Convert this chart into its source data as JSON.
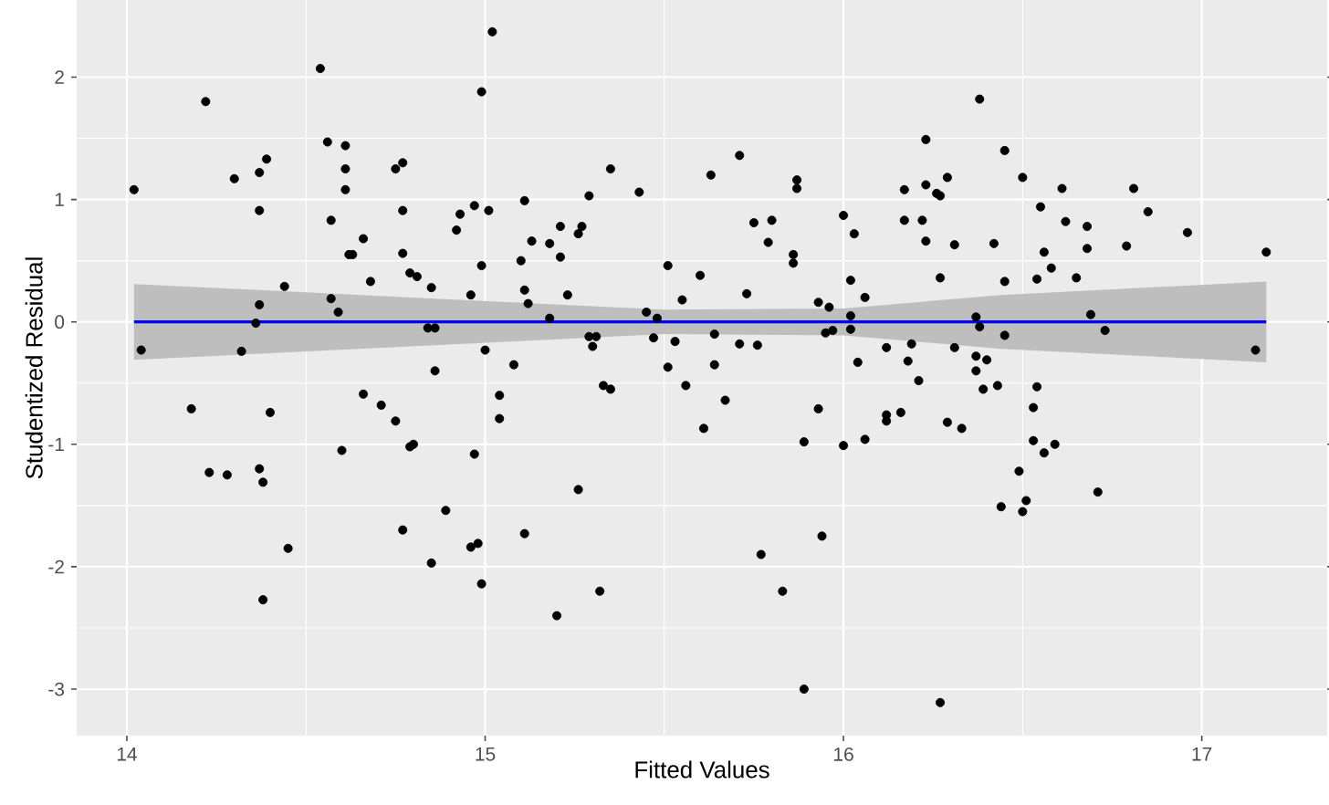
{
  "chart_data": {
    "type": "scatter",
    "xlabel": "Fitted Values",
    "ylabel": "Studentized Residual",
    "xlim": [
      13.86,
      17.35
    ],
    "ylim": [
      -3.38,
      2.63
    ],
    "xticks": [
      14,
      15,
      16,
      17
    ],
    "yticks": [
      -3,
      -2,
      -1,
      0,
      1,
      2
    ],
    "grid": true,
    "series": [
      {
        "type": "scatter",
        "marker": "circle",
        "color": "#000000",
        "x": [
          14.02,
          14.22,
          14.3,
          14.37,
          14.39,
          14.37,
          14.56,
          14.61,
          14.61,
          14.61,
          14.54,
          14.57,
          14.66,
          14.62,
          14.63,
          14.68,
          14.77,
          14.77,
          14.75,
          14.77,
          14.79,
          14.81,
          14.44,
          14.37,
          14.36,
          14.57,
          14.59,
          14.04,
          14.32,
          14.18,
          14.4,
          14.66,
          14.71,
          14.75,
          14.79,
          14.8,
          14.6,
          14.23,
          14.28,
          14.37,
          14.38,
          14.45,
          14.77,
          14.85,
          14.38,
          14.85,
          14.86,
          14.84,
          14.86,
          15.02,
          14.99,
          15.35,
          15.43,
          15.29,
          15.11,
          14.97,
          14.93,
          15.01,
          14.92,
          15.13,
          15.21,
          15.18,
          15.26,
          15.27,
          15.21,
          14.99,
          15.1,
          15.51,
          15.6,
          14.96,
          15.11,
          15.23,
          15.55,
          15.12,
          15.18,
          15.45,
          15.48,
          15.29,
          15.31,
          15.3,
          15.47,
          15.53,
          15.64,
          15.0,
          15.08,
          15.51,
          15.64,
          15.56,
          15.33,
          15.35,
          15.04,
          15.67,
          15.04,
          15.61,
          14.97,
          15.26,
          14.89,
          15.11,
          14.96,
          14.98,
          14.99,
          15.32,
          15.2,
          15.63,
          15.71,
          15.75,
          15.8,
          15.79,
          15.87,
          15.87,
          15.86,
          15.86,
          15.73,
          15.93,
          15.96,
          15.95,
          15.97,
          16.02,
          16.02,
          16.0,
          16.03,
          16.02,
          16.06,
          15.71,
          15.76,
          16.04,
          16.12,
          15.93,
          15.89,
          16.0,
          16.06,
          16.12,
          16.12,
          16.16,
          16.19,
          16.18,
          16.21,
          16.17,
          16.17,
          16.22,
          16.23,
          16.23,
          16.26,
          16.27,
          16.29,
          16.23,
          16.31,
          16.27,
          16.38,
          16.45,
          16.42,
          16.45,
          16.37,
          16.38,
          16.45,
          16.31,
          16.37,
          16.4,
          16.37,
          16.39,
          16.43,
          16.29,
          16.33,
          16.44,
          15.77,
          15.94,
          15.83,
          15.89,
          16.27,
          16.5,
          16.61,
          16.55,
          16.62,
          16.68,
          16.68,
          16.56,
          16.58,
          16.54,
          16.65,
          16.81,
          16.85,
          16.79,
          16.96,
          17.18,
          16.69,
          16.73,
          17.15,
          16.54,
          16.53,
          16.53,
          16.56,
          16.59,
          16.49,
          16.71,
          16.51,
          16.5
        ],
        "values": [
          1.08,
          1.8,
          1.17,
          1.22,
          1.33,
          0.91,
          1.47,
          1.44,
          1.25,
          1.08,
          2.07,
          0.83,
          0.68,
          0.55,
          0.55,
          0.33,
          0.56,
          0.91,
          1.25,
          1.3,
          0.4,
          0.37,
          0.29,
          0.14,
          -0.01,
          0.19,
          0.08,
          -0.23,
          -0.24,
          -0.71,
          -0.74,
          -0.59,
          -0.68,
          -0.81,
          -1.02,
          -1.0,
          -1.05,
          -1.23,
          -1.25,
          -1.2,
          -1.31,
          -1.85,
          -1.7,
          -1.97,
          -2.27,
          0.28,
          -0.4,
          -0.05,
          -0.05,
          2.37,
          1.88,
          1.25,
          1.06,
          1.03,
          0.99,
          0.95,
          0.88,
          0.91,
          0.75,
          0.66,
          0.78,
          0.64,
          0.72,
          0.78,
          0.53,
          0.46,
          0.5,
          0.46,
          0.38,
          0.22,
          0.26,
          0.22,
          0.18,
          0.15,
          0.03,
          0.08,
          0.03,
          -0.12,
          -0.12,
          -0.2,
          -0.13,
          -0.16,
          -0.1,
          -0.23,
          -0.35,
          -0.37,
          -0.35,
          -0.52,
          -0.52,
          -0.55,
          -0.6,
          -0.64,
          -0.79,
          -0.87,
          -1.08,
          -1.37,
          -1.54,
          -1.73,
          -1.84,
          -1.81,
          -2.14,
          -2.2,
          -2.4,
          1.2,
          1.36,
          0.81,
          0.83,
          0.65,
          1.16,
          1.09,
          0.55,
          0.48,
          0.23,
          0.16,
          0.12,
          -0.09,
          -0.07,
          0.05,
          -0.06,
          0.87,
          0.72,
          0.34,
          0.2,
          -0.18,
          -0.19,
          -0.33,
          -0.21,
          -0.71,
          -0.98,
          -1.01,
          -0.96,
          -0.76,
          -0.81,
          -0.74,
          -0.18,
          -0.32,
          -0.48,
          1.08,
          0.83,
          0.83,
          1.49,
          1.12,
          1.05,
          1.03,
          1.18,
          0.66,
          0.63,
          0.36,
          1.82,
          1.4,
          0.64,
          0.33,
          0.04,
          -0.04,
          -0.11,
          -0.21,
          -0.28,
          -0.31,
          -0.4,
          -0.55,
          -0.52,
          -0.82,
          -0.87,
          -1.51,
          -1.9,
          -1.75,
          -2.2,
          -3.0,
          -3.11,
          1.18,
          1.09,
          0.94,
          0.82,
          0.78,
          0.6,
          0.57,
          0.44,
          0.35,
          0.36,
          1.09,
          0.9,
          0.62,
          0.73,
          0.57,
          0.06,
          -0.07,
          -0.23,
          -0.53,
          -0.7,
          -0.97,
          -1.07,
          -1.0,
          -1.22,
          -1.39,
          -1.46,
          -1.55
        ]
      },
      {
        "type": "line",
        "marker": "none",
        "color": "#0000ff",
        "x": [
          14.02,
          14.86,
          15.5,
          16.0,
          16.44,
          17.18
        ],
        "values": [
          0,
          0,
          0,
          0,
          0,
          0
        ],
        "lower": [
          -0.31,
          -0.19,
          -0.1,
          -0.11,
          -0.22,
          -0.33
        ],
        "upper": [
          0.31,
          0.19,
          0.1,
          0.11,
          0.22,
          0.33
        ]
      }
    ]
  }
}
